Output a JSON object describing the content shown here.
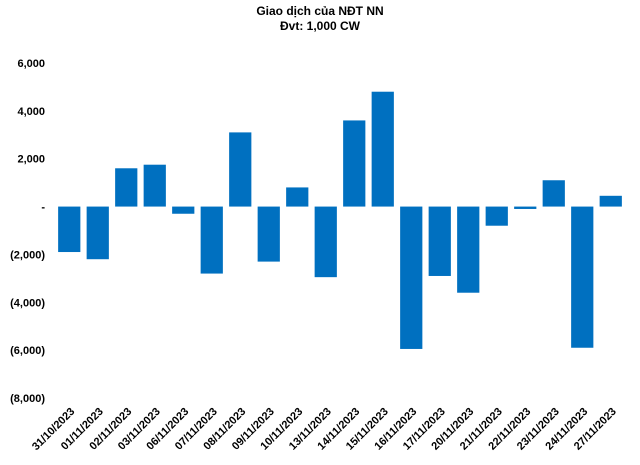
{
  "chart_data": {
    "type": "bar",
    "title": "Giao dịch của NĐT NN",
    "subtitle": "Đvt: 1,000 CW",
    "xlabel": "",
    "ylabel": "",
    "ylim": [
      -8000,
      6000
    ],
    "yticks": [
      6000,
      4000,
      2000,
      0,
      -2000,
      -4000,
      -6000,
      -8000
    ],
    "ytick_labels": [
      "6,000",
      "4,000",
      "2,000",
      "-",
      "(2,000)",
      "(4,000)",
      "(6,000)",
      "(8,000)"
    ],
    "grid": false,
    "legend": "none",
    "bar_color": "#0070C0",
    "categories": [
      "31/10/2023",
      "01/11/2023",
      "02/11/2023",
      "03/11/2023",
      "06/11/2023",
      "07/11/2023",
      "08/11/2023",
      "09/11/2023",
      "10/11/2023",
      "13/11/2023",
      "14/11/2023",
      "15/11/2023",
      "16/11/2023",
      "17/11/2023",
      "20/11/2023",
      "21/11/2023",
      "22/11/2023",
      "23/11/2023",
      "24/11/2023",
      "27/11/2023"
    ],
    "values": [
      -1900,
      -2200,
      1600,
      1750,
      -300,
      -2800,
      3100,
      -2300,
      800,
      -2950,
      3600,
      4800,
      -5950,
      -2900,
      -3600,
      -800,
      -100,
      1100,
      -5900,
      450
    ]
  }
}
